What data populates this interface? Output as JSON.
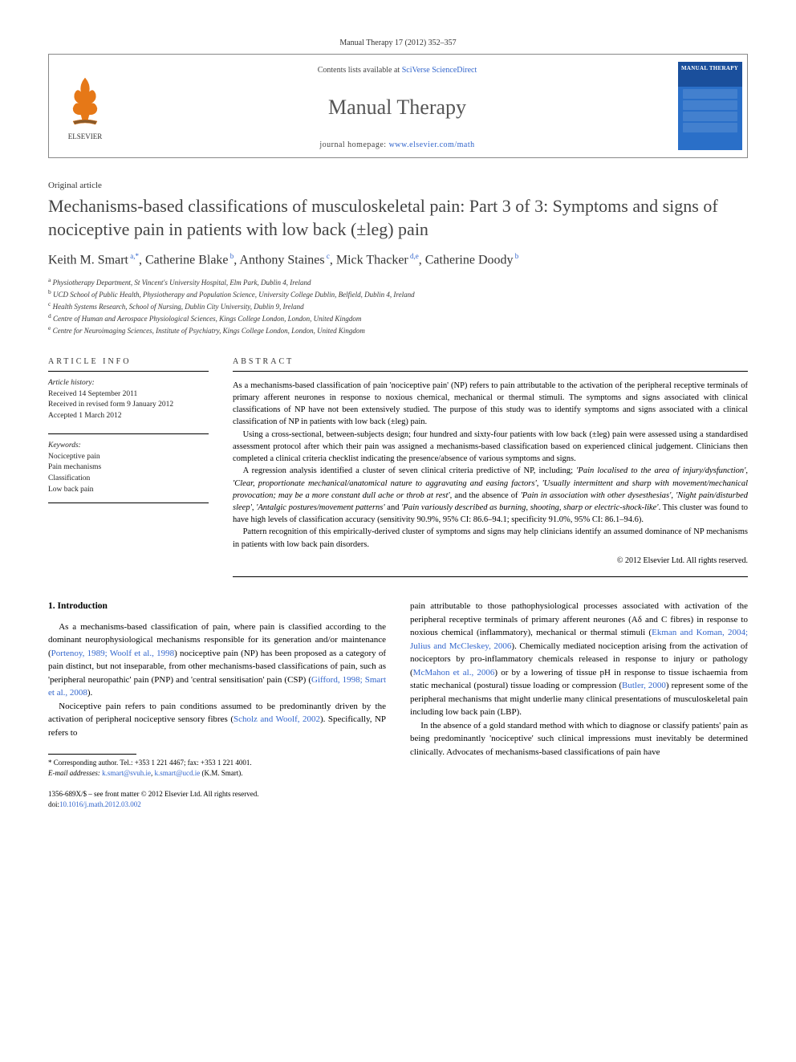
{
  "citation": "Manual Therapy 17 (2012) 352–357",
  "header": {
    "contents_prefix": "Contents lists available at ",
    "contents_link": "SciVerse ScienceDirect",
    "journal": "Manual Therapy",
    "homepage_prefix": "journal homepage: ",
    "homepage_url": "www.elsevier.com/math",
    "cover_label": "MANUAL THERAPY",
    "publisher_logo_label": "ELSEVIER"
  },
  "article_type": "Original article",
  "title": "Mechanisms-based classifications of musculoskeletal pain: Part 3 of 3: Symptoms and signs of nociceptive pain in patients with low back (±leg) pain",
  "authors_html": "Keith M. Smart<sup> a,*</sup>, Catherine Blake<sup> b</sup>, Anthony Staines<sup> c</sup>, Mick Thacker<sup> d,e</sup>, Catherine Doody<sup> b</sup>",
  "affiliations": [
    "a Physiotherapy Department, St Vincent's University Hospital, Elm Park, Dublin 4, Ireland",
    "b UCD School of Public Health, Physiotherapy and Population Science, University College Dublin, Belfield, Dublin 4, Ireland",
    "c Health Systems Research, School of Nursing, Dublin City University, Dublin 9, Ireland",
    "d Centre of Human and Aerospace Physiological Sciences, Kings College London, London, United Kingdom",
    "e Centre for Neuroimaging Sciences, Institute of Psychiatry, Kings College London, London, United Kingdom"
  ],
  "info": {
    "head": "ARTICLE INFO",
    "history_label": "Article history:",
    "received": "Received 14 September 2011",
    "revised": "Received in revised form 9 January 2012",
    "accepted": "Accepted 1 March 2012",
    "keywords_label": "Keywords:",
    "keywords": [
      "Nociceptive pain",
      "Pain mechanisms",
      "Classification",
      "Low back pain"
    ]
  },
  "abstract": {
    "head": "ABSTRACT",
    "p1": "As a mechanisms-based classification of pain 'nociceptive pain' (NP) refers to pain attributable to the activation of the peripheral receptive terminals of primary afferent neurones in response to noxious chemical, mechanical or thermal stimuli. The symptoms and signs associated with clinical classifications of NP have not been extensively studied. The purpose of this study was to identify symptoms and signs associated with a clinical classification of NP in patients with low back (±leg) pain.",
    "p2": "Using a cross-sectional, between-subjects design; four hundred and sixty-four patients with low back (±leg) pain were assessed using a standardised assessment protocol after which their pain was assigned a mechanisms-based classification based on experienced clinical judgement. Clinicians then completed a clinical criteria checklist indicating the presence/absence of various symptoms and signs.",
    "p3_pre": "A regression analysis identified a cluster of seven clinical criteria predictive of NP, including; ",
    "p3_it1": "'Pain localised to the area of injury/dysfunction'",
    "p3_c1": ", ",
    "p3_it2": "'Clear, proportionate mechanical/anatomical nature to aggravating and easing factors'",
    "p3_c2": ", ",
    "p3_it3": "'Usually intermittent and sharp with movement/mechanical provocation; may be a more constant dull ache or throb at rest'",
    "p3_c3": ", and the absence of ",
    "p3_it4": "'Pain in association with other dysesthesias'",
    "p3_c4": ", ",
    "p3_it5": "'Night pain/disturbed sleep'",
    "p3_c5": ", ",
    "p3_it6": "'Antalgic postures/movement patterns'",
    "p3_c6": " and ",
    "p3_it7": "'Pain variously described as burning, shooting, sharp or electric-shock-like'",
    "p3_post": ". This cluster was found to have high levels of classification accuracy (sensitivity 90.9%, 95% CI: 86.6–94.1; specificity 91.0%, 95% CI: 86.1–94.6).",
    "p4": "Pattern recognition of this empirically-derived cluster of symptoms and signs may help clinicians identify an assumed dominance of NP mechanisms in patients with low back pain disorders.",
    "copyright": "© 2012 Elsevier Ltd. All rights reserved."
  },
  "body": {
    "section_heading": "1. Introduction",
    "left_p1_pre": "As a mechanisms-based classification of pain, where pain is classified according to the dominant neurophysiological mechanisms responsible for its generation and/or maintenance (",
    "left_p1_c1": "Portenoy, 1989; Woolf et al., 1998",
    "left_p1_mid": ") nociceptive pain (NP) has been proposed as a category of pain distinct, but not inseparable, from other mechanisms-based classifications of pain, such as 'peripheral neuropathic' pain (PNP) and 'central sensitisation' pain (CSP) (",
    "left_p1_c2": "Gifford, 1998; Smart et al., 2008",
    "left_p1_post": ").",
    "left_p2_pre": "Nociceptive pain refers to pain conditions assumed to be predominantly driven by the activation of peripheral nociceptive sensory fibres (",
    "left_p2_c1": "Scholz and Woolf, 2002",
    "left_p2_post": "). Specifically, NP refers to",
    "right_p1_pre": "pain attributable to those pathophysiological processes associated with activation of the peripheral receptive terminals of primary afferent neurones (Aδ and C fibres) in response to noxious chemical (inflammatory), mechanical or thermal stimuli (",
    "right_p1_c1": "Ekman and Koman, 2004; Julius and McCleskey, 2006",
    "right_p1_mid1": "). Chemically mediated nociception arising from the activation of nociceptors by pro-inflammatory chemicals released in response to injury or pathology (",
    "right_p1_c2": "McMahon et al., 2006",
    "right_p1_mid2": ") or by a lowering of tissue pH in response to tissue ischaemia from static mechanical (postural) tissue loading or compression (",
    "right_p1_c3": "Butler, 2000",
    "right_p1_post": ") represent some of the peripheral mechanisms that might underlie many clinical presentations of musculoskeletal pain including low back pain (LBP).",
    "right_p2": "In the absence of a gold standard method with which to diagnose or classify patients' pain as being predominantly 'nociceptive' such clinical impressions must inevitably be determined clinically. Advocates of mechanisms-based classifications of pain have"
  },
  "footnotes": {
    "corr": "* Corresponding author. Tel.: +353 1 221 4467; fax: +353 1 221 4001.",
    "email_label": "E-mail addresses: ",
    "email1": "k.smart@svuh.ie",
    "email_sep": ", ",
    "email2": "k.smart@ucd.ie",
    "email_suffix": " (K.M. Smart)."
  },
  "footer": {
    "line1": "1356-689X/$ – see front matter © 2012 Elsevier Ltd. All rights reserved.",
    "doi_label": "doi:",
    "doi": "10.1016/j.math.2012.03.002"
  },
  "colors": {
    "link": "#3366cc",
    "text": "#000000",
    "muted": "#555555",
    "cover_top": "#1a4f9c",
    "cover_body": "#2a6fc8"
  },
  "typography": {
    "title_pt": 22,
    "authors_pt": 16,
    "body_pt": 11,
    "abstract_pt": 10.5,
    "small_pt": 9
  }
}
